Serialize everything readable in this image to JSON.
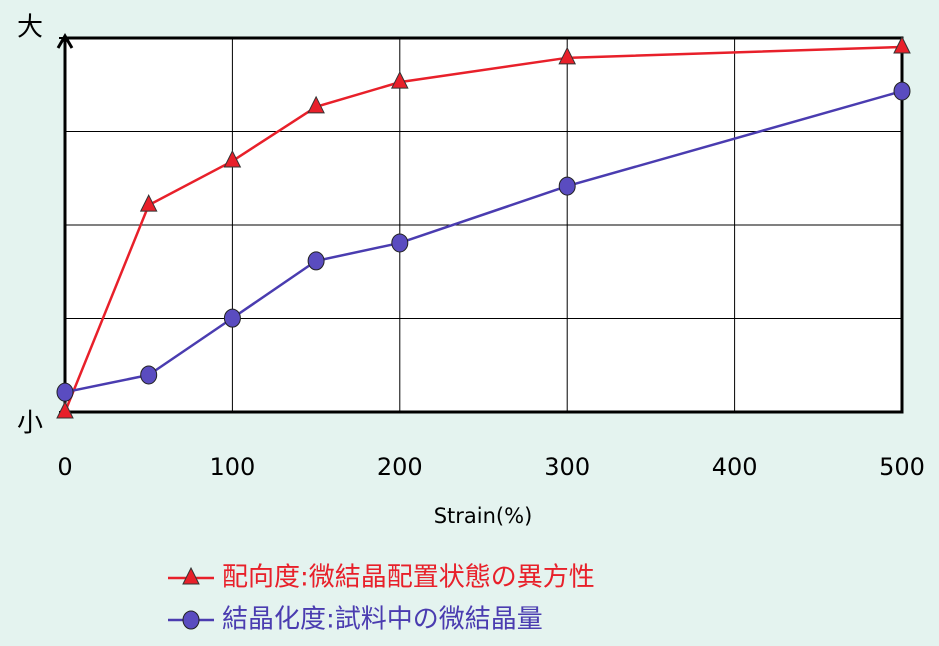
{
  "chart_data": {
    "type": "line",
    "x_label": "Strain(%)",
    "x": [
      0,
      50,
      100,
      150,
      200,
      300,
      500
    ],
    "xlim": [
      0,
      500
    ],
    "xticks": [
      0,
      100,
      200,
      300,
      400,
      500
    ],
    "ylim": [
      0,
      100
    ],
    "yticks": [
      {
        "value": 0,
        "label": "小"
      },
      {
        "value": 100,
        "label": "大"
      }
    ],
    "ygrid": [
      25,
      50,
      75
    ],
    "grid": true,
    "series": [
      {
        "name": "配向度:微結晶配置状態の異方性",
        "color": "#e8202a",
        "marker": "triangle",
        "values": [
          0,
          55.3,
          67.1,
          81.6,
          88.2,
          94.7,
          97.6
        ]
      },
      {
        "name": "結晶化度:試料中の微結晶量",
        "color": "#4a3cb0",
        "marker": "circle",
        "values": [
          5.3,
          9.9,
          25.1,
          40.4,
          45.2,
          60.4,
          85.8
        ]
      }
    ]
  }
}
